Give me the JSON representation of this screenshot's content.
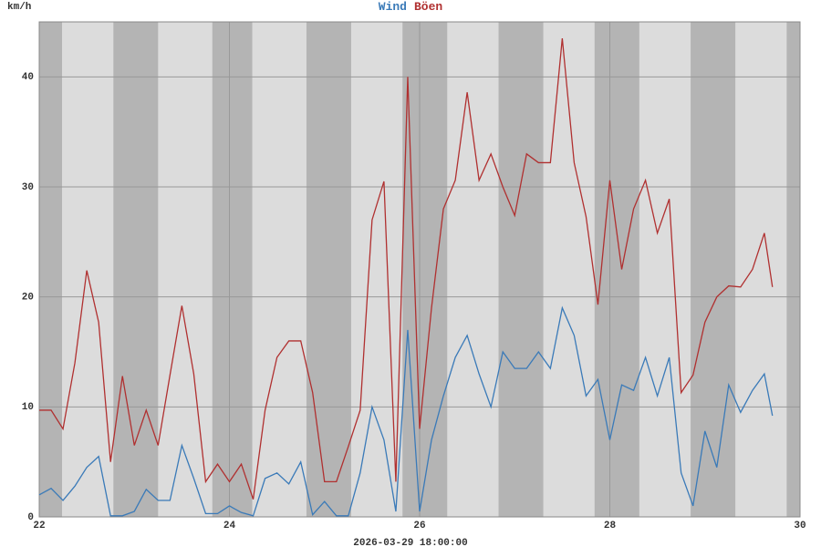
{
  "chart_data": {
    "type": "line",
    "y_unit": "km/h",
    "xlabel": "2026-03-29 18:00:00",
    "x": [
      22,
      22.125,
      22.25,
      22.375,
      22.5,
      22.625,
      22.75,
      22.875,
      23,
      23.125,
      23.25,
      23.375,
      23.5,
      23.625,
      23.75,
      23.875,
      24,
      24.125,
      24.25,
      24.375,
      24.5,
      24.625,
      24.75,
      24.875,
      25,
      25.125,
      25.25,
      25.375,
      25.5,
      25.625,
      25.75,
      25.875,
      26,
      26.125,
      26.25,
      26.375,
      26.5,
      26.625,
      26.75,
      26.875,
      27,
      27.125,
      27.25,
      27.375,
      27.5,
      27.625,
      27.75,
      27.875,
      28,
      28.125,
      28.25,
      28.375,
      28.5,
      28.625,
      28.75,
      28.875,
      29,
      29.125,
      29.25,
      29.375,
      29.5,
      29.625,
      29.71
    ],
    "series": [
      {
        "name": "Wind",
        "color": "#3a7ab8",
        "values": [
          2,
          2.6,
          1.5,
          2.8,
          4.5,
          5.5,
          0.1,
          0.1,
          0.5,
          2.5,
          1.5,
          1.5,
          6.5,
          3.5,
          0.3,
          0.3,
          1,
          0.4,
          0.1,
          3.5,
          4,
          3,
          5,
          0.2,
          1.4,
          0.1,
          0.1,
          4,
          10,
          7,
          0.5,
          17,
          0.5,
          7,
          11,
          14.5,
          16.5,
          13,
          10,
          15,
          13.5,
          13.5,
          15,
          13.5,
          19,
          16.5,
          11,
          12.5,
          7,
          12,
          11.5,
          14.5,
          11,
          14.5,
          4,
          1,
          7.8,
          4.5,
          12,
          9.5,
          11.5,
          13,
          9.2
        ]
      },
      {
        "name": "Böen",
        "color": "#b03030",
        "values": [
          9.7,
          9.7,
          8,
          14,
          22.4,
          17.7,
          5,
          12.8,
          6.5,
          9.7,
          6.5,
          12.9,
          19.2,
          13,
          3.2,
          4.8,
          3.2,
          4.8,
          1.6,
          9.7,
          14.5,
          16,
          16,
          11.3,
          3.2,
          3.2,
          6.4,
          9.7,
          27,
          30.5,
          3.2,
          40,
          8,
          19,
          28,
          30.6,
          38.6,
          30.6,
          33,
          30,
          27.4,
          33,
          32.2,
          32.2,
          43.5,
          32.2,
          27.3,
          19.3,
          30.6,
          22.5,
          28,
          30.6,
          25.8,
          28.9,
          11.3,
          12.9,
          17.7,
          20,
          21,
          20.9,
          22.5,
          25.8,
          20.9
        ]
      }
    ],
    "xlim": [
      22,
      30
    ],
    "xticks": [
      22,
      24,
      26,
      28,
      30
    ],
    "ylim": [
      0,
      45
    ],
    "yticks": [
      0,
      10,
      20,
      30,
      40
    ],
    "grid": true,
    "shaded_ranges": [
      [
        22,
        22.24
      ],
      [
        22.78,
        23.25
      ],
      [
        23.82,
        24.24
      ],
      [
        24.81,
        25.28
      ],
      [
        25.82,
        26.29
      ],
      [
        26.83,
        27.3
      ],
      [
        27.84,
        28.31
      ],
      [
        28.85,
        29.32
      ],
      [
        29.86,
        30
      ]
    ],
    "background_color": "#dcdcdc",
    "shade_color": "#b4b4b4"
  }
}
